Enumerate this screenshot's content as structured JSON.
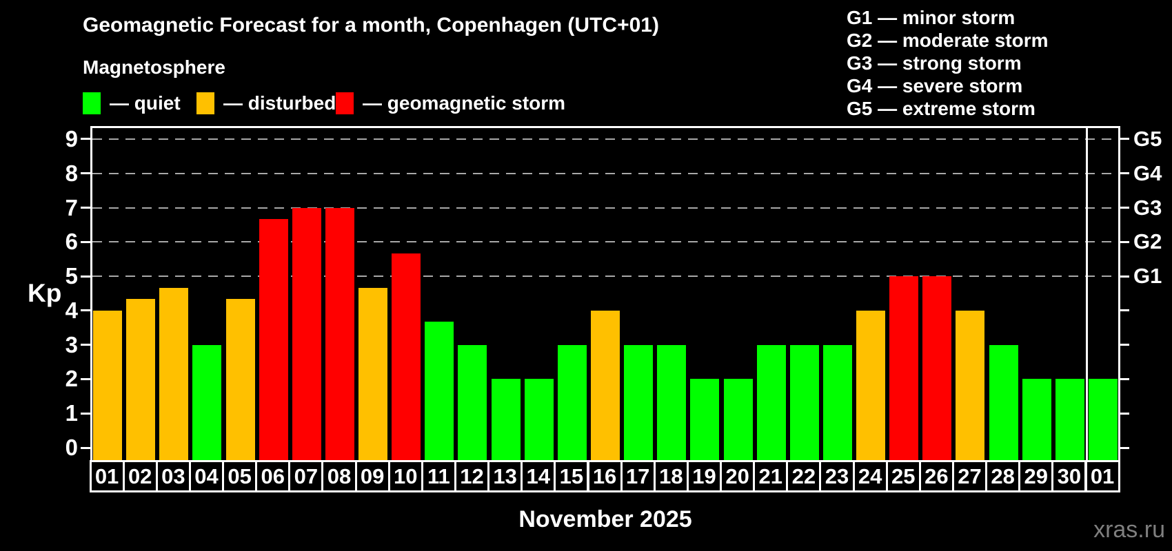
{
  "title": "Geomagnetic Forecast for a month, Copenhagen (UTC+01)",
  "subtitle": "Magnetosphere",
  "kp_axis_label": "Kp",
  "x_axis_label": "November 2025",
  "watermark": "xras.ru",
  "status_legend": [
    {
      "key": "quiet",
      "label": "— quiet",
      "color": "#00ff00"
    },
    {
      "key": "disturbed",
      "label": "— disturbed",
      "color": "#ffc000"
    },
    {
      "key": "storm",
      "label": "— geomagnetic storm",
      "color": "#ff0000"
    }
  ],
  "g_scale_legend": [
    "G1 — minor storm",
    "G2 — moderate storm",
    "G3 — strong storm",
    "G4 — severe storm",
    "G5 — extreme storm"
  ],
  "chart_data": {
    "type": "bar",
    "title": "Geomagnetic Forecast for a month, Copenhagen (UTC+01)",
    "xlabel": "November 2025",
    "ylabel": "Kp",
    "ylim": [
      0,
      9
    ],
    "y_ticks": [
      0,
      1,
      2,
      3,
      4,
      5,
      6,
      7,
      8,
      9
    ],
    "gridlines_at_kp": [
      5,
      6,
      7,
      8,
      9
    ],
    "grid_color": "#a9a9a9",
    "right_axis_labels": [
      {
        "kp": 5,
        "label": "G1"
      },
      {
        "kp": 6,
        "label": "G2"
      },
      {
        "kp": 7,
        "label": "G3"
      },
      {
        "kp": 8,
        "label": "G4"
      },
      {
        "kp": 9,
        "label": "G5"
      }
    ],
    "categories": [
      "01",
      "02",
      "03",
      "04",
      "05",
      "06",
      "07",
      "08",
      "09",
      "10",
      "11",
      "12",
      "13",
      "14",
      "15",
      "16",
      "17",
      "18",
      "19",
      "20",
      "21",
      "22",
      "23",
      "24",
      "25",
      "26",
      "27",
      "28",
      "29",
      "30",
      "01"
    ],
    "values": [
      4,
      4.33,
      4.67,
      3,
      4.33,
      6.67,
      7,
      7,
      4.67,
      5.67,
      3.67,
      3,
      2,
      2,
      3,
      4,
      3,
      3,
      2,
      2,
      3,
      3,
      3,
      4,
      5,
      5,
      4,
      3,
      2,
      2,
      2
    ],
    "status": [
      "disturbed",
      "disturbed",
      "disturbed",
      "quiet",
      "disturbed",
      "storm",
      "storm",
      "storm",
      "disturbed",
      "storm",
      "quiet",
      "quiet",
      "quiet",
      "quiet",
      "quiet",
      "disturbed",
      "quiet",
      "quiet",
      "quiet",
      "quiet",
      "quiet",
      "quiet",
      "quiet",
      "disturbed",
      "storm",
      "storm",
      "disturbed",
      "quiet",
      "quiet",
      "quiet",
      "quiet"
    ],
    "status_colors": {
      "quiet": "#00ff00",
      "disturbed": "#ffc000",
      "storm": "#ff0000"
    },
    "month_boundary_after_index": 29
  }
}
